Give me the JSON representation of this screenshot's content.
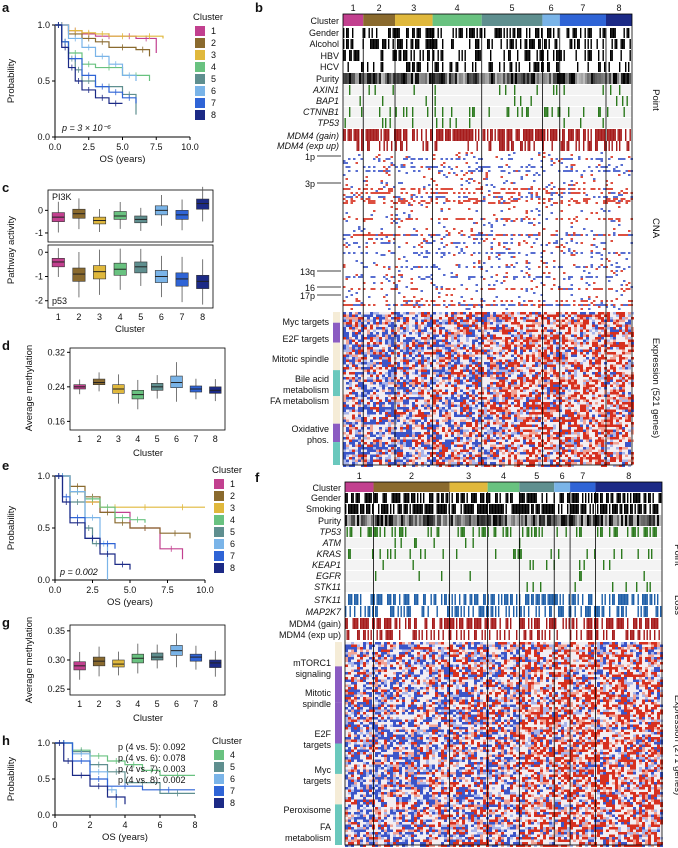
{
  "palette": {
    "cluster_colors": [
      "#c2408f",
      "#8a6a2e",
      "#e0b83c",
      "#69c280",
      "#5f8f8f",
      "#7ab4e8",
      "#2f64d6",
      "#1c2a86"
    ],
    "heat_red": "#d7301f",
    "heat_blue": "#3b55c9",
    "point_green": "#2c7a1e",
    "gain_red": "#a61b1b",
    "loss_blue": "#1f5fa8"
  },
  "panels": {
    "a": {
      "label": "a",
      "legend_title": "Cluster",
      "legend": [
        "1",
        "2",
        "3",
        "4",
        "5",
        "6",
        "7",
        "8"
      ],
      "pvalue": "p = 3 × 10⁻⁶"
    },
    "b": {
      "label": "b",
      "top_numbers": [
        "1",
        "2",
        "3",
        "4",
        "5",
        "6",
        "7",
        "8"
      ],
      "row_labels": [
        "Cluster",
        "Gender",
        "Alcohol",
        "HBV",
        "HCV",
        "Purity",
        "AXIN1",
        "BAP1",
        "CTNNB1",
        "TP53",
        "MDM4 (gain)",
        "MDM4 (exp up)"
      ],
      "cna_labels": [
        "1p",
        "3p",
        "13q",
        "16",
        "17p"
      ],
      "expr_labels": [
        "Myc targets",
        "E2F targets",
        "Mitotic spindle",
        "Bile acid metabolism",
        "FA metabolism",
        "Oxidative phos."
      ],
      "side_point": "Point",
      "side_cna": "CNA",
      "side_expr": "Expression (521 genes)"
    },
    "c": {
      "label": "c",
      "top_tag": "PI3K",
      "bottom_tag": "p53"
    },
    "d": {
      "label": "d"
    },
    "e": {
      "label": "e",
      "legend_title": "Cluster",
      "legend": [
        "1",
        "2",
        "3",
        "4",
        "5",
        "6",
        "7",
        "8"
      ],
      "pvalue": "p = 0.002"
    },
    "f": {
      "label": "f",
      "top_numbers": [
        "1",
        "2",
        "3",
        "4",
        "5",
        "6",
        "7",
        "8"
      ],
      "row_labels": [
        "Cluster",
        "Gender",
        "Smoking",
        "Purity",
        "TP53",
        "ATM",
        "KRAS",
        "KEAP1",
        "EGFR",
        "STK11",
        "STK11",
        "MAP2K7",
        "MDM4 (gain)",
        "MDM4 (exp up)"
      ],
      "expr_labels": [
        "mTORC1 signaling",
        "Mitotic spindle",
        "E2F targets",
        "Myc targets",
        "Peroxisome",
        "FA metabolism"
      ],
      "side_point": "Point",
      "side_loss": "Loss",
      "side_expr": "Expression (271 genes)"
    },
    "g": {
      "label": "g"
    },
    "h": {
      "label": "h",
      "legend_title": "Cluster",
      "legend": [
        "4",
        "5",
        "6",
        "7",
        "8"
      ],
      "pvals": [
        "p (4 vs. 5): 0.092",
        "p (4 vs. 6): 0.078",
        "p (4 vs. 7): 0.003",
        "p (4 vs. 8): 0.002"
      ]
    }
  },
  "chart_data": [
    {
      "id": "a",
      "type": "line",
      "title": "",
      "xlabel": "OS (years)",
      "ylabel": "Probability",
      "xlim": [
        0,
        10
      ],
      "ylim": [
        0,
        1
      ],
      "xticks": [
        "0.0",
        "2.5",
        "5.0",
        "7.5",
        "10.0"
      ],
      "yticks": [
        "0.0",
        "0.5",
        "1.0"
      ],
      "series": [
        {
          "name": "1",
          "x": [
            0,
            1,
            2,
            3,
            5,
            6,
            7.5
          ],
          "y": [
            1,
            0.95,
            0.92,
            0.9,
            0.9,
            0.88,
            0.75
          ]
        },
        {
          "name": "2",
          "x": [
            0,
            1,
            2,
            3,
            4,
            6,
            7
          ],
          "y": [
            1,
            0.92,
            0.88,
            0.85,
            0.8,
            0.78,
            0.72
          ]
        },
        {
          "name": "3",
          "x": [
            0,
            1,
            2,
            3,
            4,
            6,
            8
          ],
          "y": [
            1,
            0.95,
            0.93,
            0.92,
            0.9,
            0.9,
            0.88
          ]
        },
        {
          "name": "4",
          "x": [
            0,
            0.5,
            1,
            2,
            3,
            5,
            7
          ],
          "y": [
            1,
            0.85,
            0.75,
            0.65,
            0.62,
            0.55,
            0.5
          ]
        },
        {
          "name": "5",
          "x": [
            0,
            0.5,
            1,
            1.5,
            2,
            3,
            5,
            6
          ],
          "y": [
            1,
            0.85,
            0.7,
            0.6,
            0.5,
            0.45,
            0.38,
            0.2
          ]
        },
        {
          "name": "6",
          "x": [
            0,
            1,
            2,
            3,
            4,
            5,
            6
          ],
          "y": [
            1,
            0.88,
            0.8,
            0.72,
            0.65,
            0.55,
            0.5
          ]
        },
        {
          "name": "7",
          "x": [
            0,
            0.5,
            1,
            2,
            3,
            4,
            5,
            6
          ],
          "y": [
            1,
            0.85,
            0.7,
            0.55,
            0.45,
            0.4,
            0.35,
            0.3
          ]
        },
        {
          "name": "8",
          "x": [
            0,
            0.5,
            1,
            1.5,
            2,
            3,
            4,
            5
          ],
          "y": [
            1,
            0.8,
            0.62,
            0.5,
            0.42,
            0.35,
            0.3,
            0.3
          ]
        }
      ]
    },
    {
      "id": "c",
      "type": "box",
      "xlabel": "Cluster",
      "ylabel": "Pathway activity",
      "categories": [
        "1",
        "2",
        "3",
        "4",
        "5",
        "6",
        "7",
        "8"
      ],
      "subplots": [
        {
          "name": "PI3K",
          "yticks": [
            "-1",
            "0"
          ],
          "ylim": [
            -1.4,
            0.9
          ],
          "median": [
            -0.3,
            -0.15,
            -0.45,
            -0.25,
            -0.4,
            0,
            -0.2,
            0.3
          ],
          "q1": [
            -0.5,
            -0.35,
            -0.6,
            -0.4,
            -0.55,
            -0.2,
            -0.4,
            0.05
          ],
          "q3": [
            -0.1,
            0.05,
            -0.3,
            -0.05,
            -0.25,
            0.2,
            0,
            0.5
          ]
        },
        {
          "name": "p53",
          "yticks": [
            "-2",
            "-1",
            "0"
          ],
          "ylim": [
            -2.3,
            0.3
          ],
          "median": [
            -0.4,
            -0.9,
            -0.8,
            -0.7,
            -0.6,
            -1,
            -1.1,
            -1.2
          ],
          "q1": [
            -0.6,
            -1.2,
            -1.1,
            -0.95,
            -0.85,
            -1.25,
            -1.4,
            -1.5
          ],
          "q3": [
            -0.25,
            -0.65,
            -0.55,
            -0.45,
            -0.4,
            -0.75,
            -0.85,
            -0.95
          ]
        }
      ]
    },
    {
      "id": "d",
      "type": "box",
      "xlabel": "Cluster",
      "ylabel": "Average methylation",
      "categories": [
        "1",
        "2",
        "3",
        "4",
        "5",
        "6",
        "7",
        "8"
      ],
      "yticks": [
        "0.16",
        "0.24",
        "0.32"
      ],
      "ylim": [
        0.14,
        0.33
      ],
      "median": [
        0.24,
        0.25,
        0.235,
        0.222,
        0.24,
        0.25,
        0.235,
        0.232
      ],
      "q1": [
        0.235,
        0.245,
        0.225,
        0.212,
        0.232,
        0.238,
        0.228,
        0.225
      ],
      "q3": [
        0.245,
        0.258,
        0.245,
        0.232,
        0.248,
        0.265,
        0.242,
        0.24
      ]
    },
    {
      "id": "e",
      "type": "line",
      "xlabel": "OS (years)",
      "ylabel": "Probability",
      "xlim": [
        0,
        10
      ],
      "ylim": [
        0,
        1
      ],
      "xticks": [
        "0.0",
        "2.5",
        "5.0",
        "7.5",
        "10.0"
      ],
      "yticks": [
        "0.0",
        "0.5",
        "1.0"
      ],
      "series": [
        {
          "name": "1",
          "x": [
            0,
            1,
            2,
            3,
            5,
            7,
            8.5
          ],
          "y": [
            1,
            0.85,
            0.75,
            0.65,
            0.5,
            0.3,
            0.2
          ]
        },
        {
          "name": "2",
          "x": [
            0,
            1,
            2,
            3,
            4,
            5,
            7,
            9
          ],
          "y": [
            1,
            0.9,
            0.8,
            0.65,
            0.55,
            0.5,
            0.45,
            0.4
          ]
        },
        {
          "name": "3",
          "x": [
            0,
            1,
            2,
            3,
            5,
            7,
            10
          ],
          "y": [
            1,
            0.85,
            0.75,
            0.7,
            0.7,
            0.7,
            0.7
          ]
        },
        {
          "name": "4",
          "x": [
            0,
            1,
            2,
            3,
            4,
            5,
            6
          ],
          "y": [
            1,
            0.85,
            0.78,
            0.7,
            0.6,
            0.58,
            0.55
          ]
        },
        {
          "name": "5",
          "x": [
            0,
            1,
            2,
            2.5,
            3
          ],
          "y": [
            1,
            0.75,
            0.5,
            0.35,
            0.3
          ]
        },
        {
          "name": "6",
          "x": [
            0,
            1,
            2,
            3,
            3.5
          ],
          "y": [
            1,
            0.85,
            0.6,
            0.35,
            0.0
          ]
        },
        {
          "name": "7",
          "x": [
            0,
            0.5,
            1,
            2,
            3,
            4
          ],
          "y": [
            1,
            0.8,
            0.6,
            0.4,
            0.35,
            0.3
          ]
        },
        {
          "name": "8",
          "x": [
            0,
            0.5,
            1,
            2,
            3,
            4,
            5
          ],
          "y": [
            1,
            0.75,
            0.55,
            0.4,
            0.25,
            0.15,
            0.1
          ]
        }
      ],
      "pvalue": "p = 0.002"
    },
    {
      "id": "g",
      "type": "box",
      "xlabel": "Cluster",
      "ylabel": "Average methylation",
      "categories": [
        "1",
        "2",
        "3",
        "4",
        "5",
        "6",
        "7",
        "8"
      ],
      "yticks": [
        "0.25",
        "0.30",
        "0.35"
      ],
      "ylim": [
        0.24,
        0.36
      ],
      "median": [
        0.29,
        0.298,
        0.293,
        0.303,
        0.305,
        0.316,
        0.305,
        0.295
      ],
      "q1": [
        0.283,
        0.29,
        0.288,
        0.295,
        0.3,
        0.308,
        0.298,
        0.287
      ],
      "q3": [
        0.297,
        0.305,
        0.3,
        0.31,
        0.312,
        0.325,
        0.31,
        0.3
      ]
    },
    {
      "id": "h",
      "type": "line",
      "xlabel": "OS (years)",
      "ylabel": "Probability",
      "xlim": [
        0,
        8
      ],
      "ylim": [
        0,
        1
      ],
      "xticks": [
        "0",
        "2",
        "4",
        "6",
        "8"
      ],
      "yticks": [
        "0.0",
        "0.5",
        "1.0"
      ],
      "series": [
        {
          "name": "4",
          "x": [
            0,
            1,
            2,
            3,
            4,
            5,
            6,
            8
          ],
          "y": [
            1,
            0.9,
            0.82,
            0.75,
            0.7,
            0.62,
            0.55,
            0.55
          ]
        },
        {
          "name": "5",
          "x": [
            0,
            1,
            2,
            3,
            4,
            6,
            8
          ],
          "y": [
            1,
            0.88,
            0.7,
            0.6,
            0.45,
            0.3,
            0.3
          ]
        },
        {
          "name": "6",
          "x": [
            0,
            1,
            2,
            3,
            3.5
          ],
          "y": [
            1,
            0.85,
            0.6,
            0.35,
            0.1
          ]
        },
        {
          "name": "7",
          "x": [
            0,
            1,
            2,
            3,
            5,
            8
          ],
          "y": [
            1,
            0.75,
            0.5,
            0.4,
            0.35,
            0.35
          ]
        },
        {
          "name": "8",
          "x": [
            0,
            0.5,
            1,
            2,
            3,
            4
          ],
          "y": [
            1,
            0.75,
            0.55,
            0.4,
            0.25,
            0.15
          ]
        }
      ]
    }
  ]
}
